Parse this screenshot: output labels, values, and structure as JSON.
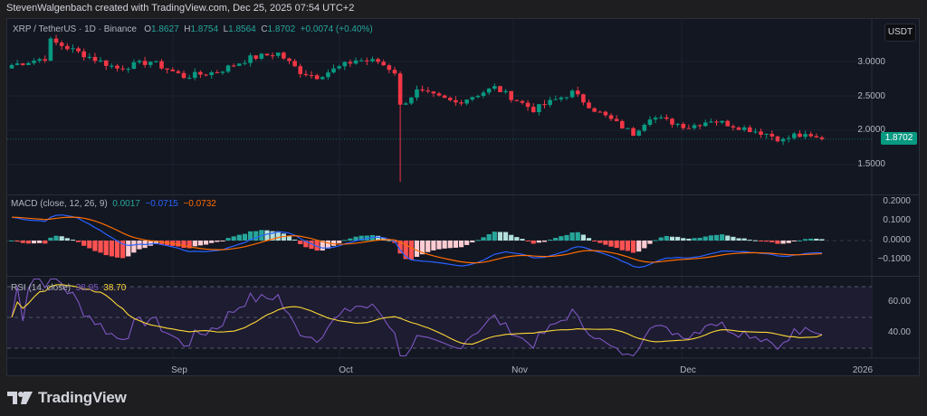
{
  "attribution": "StevenWalgenbach created with TradingView.com, Dec 25, 2025 07:54 UTC+2",
  "symbol": {
    "title": "XRP / TetherUS · 1D · Binance",
    "open_label": "O",
    "open": "1.8627",
    "high_label": "H",
    "high": "1.8754",
    "low_label": "L",
    "low": "1.8564",
    "close_label": "C",
    "close": "1.8702",
    "change": "+0.0074 (+0.40%)"
  },
  "currency_button": "USDT",
  "last_price_tag": "1.8702",
  "price_axis": [
    "3.0000",
    "2.5000",
    "2.0000",
    "1.5000"
  ],
  "macd": {
    "title": "MACD (close, 12, 26, 9)",
    "histogram": "0.0017",
    "macd": "−0.0715",
    "signal": "−0.0732",
    "axis": [
      "0.2000",
      "0.1000",
      "0.0000",
      "−0.1000"
    ]
  },
  "rsi": {
    "title": "RSI (14, close)",
    "rsi": "38.95",
    "ma": "38.70",
    "axis": [
      "60.00",
      "40.00"
    ]
  },
  "time_axis": [
    "Sep",
    "Oct",
    "Nov",
    "Dec",
    "2026"
  ],
  "branding": "TradingView",
  "colors": {
    "up": "#089981",
    "down": "#f23645",
    "macd_line": "#2962ff",
    "signal_line": "#ff6d00",
    "rsi_line": "#7e57c2",
    "rsi_ma": "#fdd835",
    "background": "#131722"
  },
  "chart_data": [
    {
      "type": "candlestick",
      "title": "XRP / TetherUS · 1D · Binance",
      "ylabel": "USDT",
      "ylim": [
        1.25,
        3.6
      ],
      "x_ticks": [
        "Sep",
        "Oct",
        "Nov",
        "Dec",
        "2026"
      ],
      "approx_close_path": [
        {
          "date": "Aug 1",
          "close": 2.95
        },
        {
          "date": "Aug 7",
          "close": 3.05
        },
        {
          "date": "Aug 8",
          "close": 3.3
        },
        {
          "date": "Aug 14",
          "close": 3.1
        },
        {
          "date": "Aug 20",
          "close": 2.9
        },
        {
          "date": "Aug 26",
          "close": 3.0
        },
        {
          "date": "Sep 1",
          "close": 2.78
        },
        {
          "date": "Sep 7",
          "close": 2.85
        },
        {
          "date": "Sep 13",
          "close": 3.05
        },
        {
          "date": "Sep 18",
          "close": 3.12
        },
        {
          "date": "Sep 22",
          "close": 2.85
        },
        {
          "date": "Sep 25",
          "close": 2.78
        },
        {
          "date": "Oct 2",
          "close": 3.02
        },
        {
          "date": "Oct 6",
          "close": 3.0
        },
        {
          "date": "Oct 9",
          "close": 2.85
        },
        {
          "date": "Oct 10",
          "close": 2.35,
          "low": 1.25
        },
        {
          "date": "Oct 13",
          "close": 2.57
        },
        {
          "date": "Oct 20",
          "close": 2.4
        },
        {
          "date": "Oct 27",
          "close": 2.62
        },
        {
          "date": "Nov 3",
          "close": 2.3
        },
        {
          "date": "Nov 10",
          "close": 2.55
        },
        {
          "date": "Nov 14",
          "close": 2.3
        },
        {
          "date": "Nov 21",
          "close": 1.95
        },
        {
          "date": "Nov 24",
          "close": 2.2
        },
        {
          "date": "Dec 1",
          "close": 2.05
        },
        {
          "date": "Dec 5",
          "close": 2.15
        },
        {
          "date": "Dec 10",
          "close": 2.05
        },
        {
          "date": "Dec 15",
          "close": 1.95
        },
        {
          "date": "Dec 18",
          "close": 1.85
        },
        {
          "date": "Dec 20",
          "close": 1.93
        },
        {
          "date": "Dec 25",
          "open": 1.8627,
          "high": 1.8754,
          "low": 1.8564,
          "close": 1.8702
        }
      ]
    },
    {
      "type": "bar+line",
      "title": "MACD (close, 12, 26, 9)",
      "series": [
        {
          "name": "Histogram",
          "last": 0.0017
        },
        {
          "name": "MACD",
          "last": -0.0715
        },
        {
          "name": "Signal",
          "last": -0.0732
        }
      ],
      "ylim": [
        -0.15,
        0.22
      ],
      "y_ticks": [
        0.2,
        0.1,
        0.0,
        -0.1
      ]
    },
    {
      "type": "line",
      "title": "RSI (14, close)",
      "series": [
        {
          "name": "RSI",
          "last": 38.95
        },
        {
          "name": "RSI-based MA",
          "last": 38.7
        }
      ],
      "bands": [
        30,
        50,
        70
      ],
      "y_ticks": [
        60,
        40
      ]
    }
  ]
}
